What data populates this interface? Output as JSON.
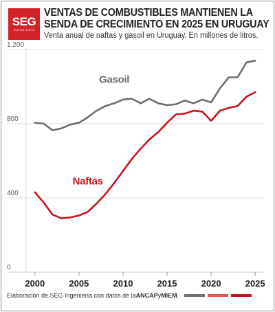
{
  "header": {
    "logo_text": "SEG",
    "logo_subtext": "INGENIERÍA",
    "title_line1": "VENTAS DE COMBUSTIBLES MANTIENEN LA",
    "title_line2": "SENDA DE CRECIMIENTO EN 2025 EN URUGUAY",
    "subtitle": "Venta anual de naftas y gasoil en Uruguay. En millones de litros."
  },
  "footer": {
    "text_prefix": "Elaboración de SEG Ingeniería con datos de la ",
    "source1": "ANCAP",
    "text_middle": " y ",
    "source2": "MIEM",
    "text_suffix": ".",
    "swatch_colors": [
      "#707070",
      "#e85050",
      "#c8141c"
    ]
  },
  "chart_data": {
    "type": "line",
    "title": "VENTAS DE COMBUSTIBLES MANTIENEN LA SENDA DE CRECIMIENTO EN 2025 EN URUGUAY",
    "subtitle": "Venta anual de naftas y gasoil en Uruguay. En millones de litros.",
    "xlabel": "",
    "ylabel": "",
    "xlim": [
      1999,
      2026
    ],
    "ylim": [
      0,
      1200
    ],
    "x_ticks": [
      2000,
      2005,
      2010,
      2015,
      2020,
      2025
    ],
    "y_ticks": [
      0,
      400,
      800,
      1200
    ],
    "y_tick_labels": [
      "0",
      "400",
      "800",
      "1.200"
    ],
    "grid": "horizontal",
    "series": [
      {
        "name": "Gasoil",
        "color": "#6d6d6d",
        "x": [
          2000,
          2001,
          2002,
          2003,
          2004,
          2005,
          2006,
          2007,
          2008,
          2009,
          2010,
          2011,
          2012,
          2013,
          2014,
          2015,
          2016,
          2017,
          2018,
          2019,
          2020,
          2021,
          2022,
          2023,
          2024,
          2025
        ],
        "values": [
          805,
          800,
          765,
          775,
          795,
          805,
          835,
          870,
          895,
          910,
          930,
          935,
          910,
          935,
          910,
          900,
          905,
          925,
          910,
          930,
          915,
          990,
          1050,
          1050,
          1130,
          1140
        ]
      },
      {
        "name": "Naftas",
        "color": "#c8141c",
        "x": [
          2000,
          2001,
          2002,
          2003,
          2004,
          2005,
          2006,
          2007,
          2008,
          2009,
          2010,
          2011,
          2012,
          2013,
          2014,
          2015,
          2016,
          2017,
          2018,
          2019,
          2020,
          2021,
          2022,
          2023,
          2024,
          2025
        ],
        "values": [
          430,
          375,
          310,
          290,
          295,
          305,
          325,
          370,
          420,
          480,
          545,
          610,
          665,
          715,
          755,
          805,
          850,
          855,
          870,
          865,
          815,
          870,
          885,
          895,
          945,
          970
        ]
      }
    ]
  }
}
